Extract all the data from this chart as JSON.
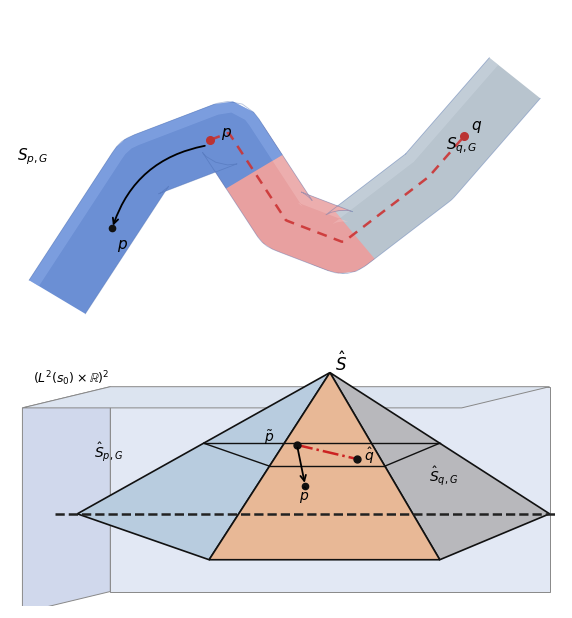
{
  "bg_color": "#ffffff",
  "tube_blue": "#6b8fd4",
  "tube_blue_light": "#8aaae8",
  "tube_gray": "#b8c4ce",
  "tube_gray_light": "#ccd6e0",
  "tube_pink": "#e8a0a0",
  "tube_pink_light": "#f0bbbb",
  "geodesic_color": "#cc3333",
  "point_color_red": "#bb3333",
  "point_color_black": "#111111",
  "box_face_front": "#e2e8f4",
  "box_face_left": "#d0d8ec",
  "box_face_top": "#dce4f0",
  "box_edge": "#888888",
  "pyramid_left_color": "#b8ccdf",
  "pyramid_right_color": "#b8b8bc",
  "pyramid_front_color": "#e8b896",
  "pyramid_edge": "#111111",
  "mid_line_color": "#111111",
  "dashed_color": "#222222",
  "red_geodesic": "#cc2222",
  "arrow_color": "#111111"
}
